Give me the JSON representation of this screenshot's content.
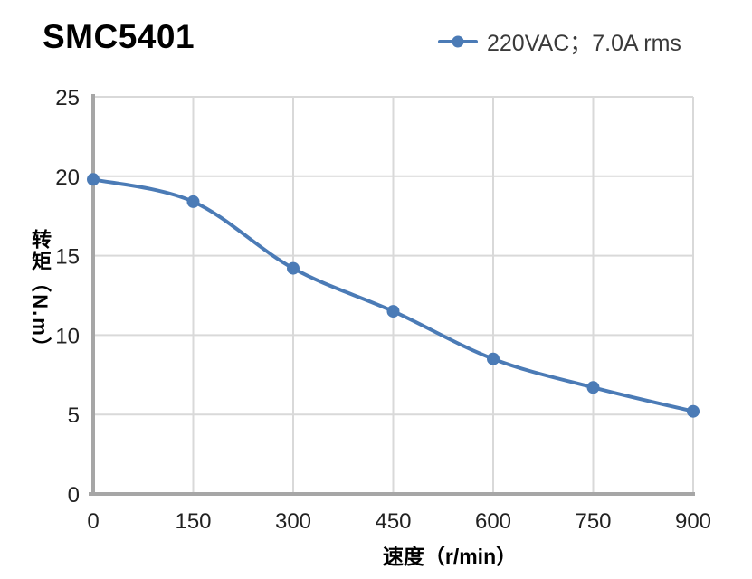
{
  "title": "SMC5401",
  "legend": {
    "label": "220VAC；7.0A rms",
    "marker_color": "#4b7bb6"
  },
  "chart_data": {
    "type": "line",
    "title": "SMC5401",
    "xlabel": "速度（r/min）",
    "ylabel": "转矩（N.m）",
    "x": [
      0,
      150,
      300,
      450,
      600,
      750,
      900
    ],
    "series": [
      {
        "name": "220VAC；7.0A rms",
        "values": [
          19.8,
          18.4,
          14.2,
          11.5,
          8.5,
          6.7,
          5.2
        ]
      }
    ],
    "x_ticks": [
      0,
      150,
      300,
      450,
      600,
      750,
      900
    ],
    "y_ticks": [
      0,
      5,
      10,
      15,
      20,
      25
    ],
    "xlim": [
      0,
      900
    ],
    "ylim": [
      0,
      25
    ],
    "grid": true,
    "legend_position": "top-right",
    "colors": {
      "line": "#4b7bb6",
      "grid": "#d9d9d9",
      "axis": "#a6a6a6",
      "text": "#212121"
    }
  }
}
